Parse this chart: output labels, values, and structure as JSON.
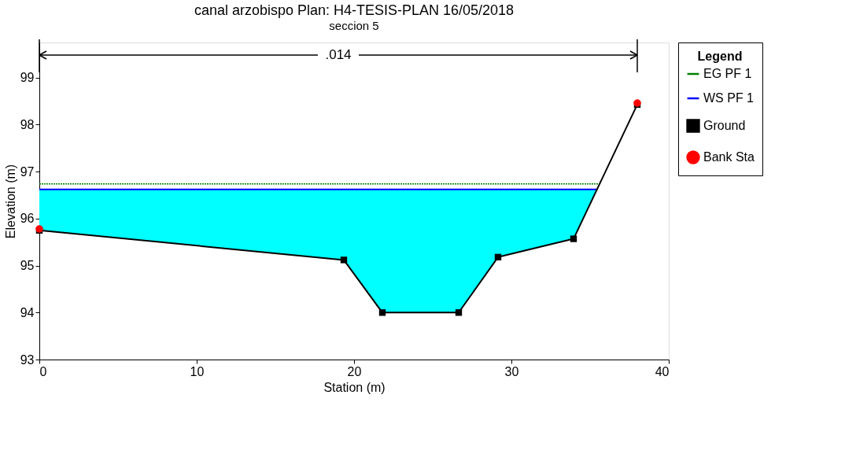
{
  "chart_data": {
    "type": "line",
    "title": "canal arzobispo        Plan: H4-TESIS-PLAN    16/05/2018",
    "subtitle": "seccion 5",
    "xlabel": "Station (m)",
    "ylabel": "Elevation (m)",
    "legend_title": "Legend",
    "legend": "right",
    "xlim": [
      0,
      40
    ],
    "xticks": [
      0,
      10,
      20,
      30,
      40
    ],
    "ylim": [
      93,
      99.75
    ],
    "yticks": [
      93,
      94,
      95,
      96,
      97,
      98,
      99
    ],
    "annotations": [
      ".014"
    ],
    "series": [
      {
        "name": "EG PF 1",
        "color": "#008000",
        "line_style": "dotted",
        "x": [
          0,
          35.58
        ],
        "values": [
          96.74,
          96.74
        ]
      },
      {
        "name": "WS PF 1",
        "color": "#0000ff",
        "line_style": "solid",
        "x": [
          0,
          19.35,
          21.8,
          26.65,
          29.15,
          33.95,
          35.41
        ],
        "values": [
          96.62,
          96.62,
          96.62,
          96.62,
          96.62,
          96.62,
          96.62
        ],
        "lower": [
          95.75,
          95.12,
          94.0,
          94.0,
          95.18,
          95.57,
          96.62
        ],
        "upper": [
          96.62,
          96.62,
          96.62,
          96.62,
          96.62,
          96.62,
          96.62
        ]
      },
      {
        "name": "Ground",
        "color": "#000000",
        "line_style": "solid",
        "marker": "square",
        "x": [
          0,
          19.35,
          21.8,
          26.65,
          29.15,
          33.95,
          38
        ],
        "values": [
          95.75,
          95.12,
          94.0,
          94.0,
          95.18,
          95.57,
          98.43
        ]
      },
      {
        "name": "Bank Sta",
        "type": "scatter",
        "color": "#ff0000",
        "marker": "circle",
        "x": [
          0,
          38
        ],
        "values": [
          95.78,
          98.46
        ]
      }
    ]
  }
}
